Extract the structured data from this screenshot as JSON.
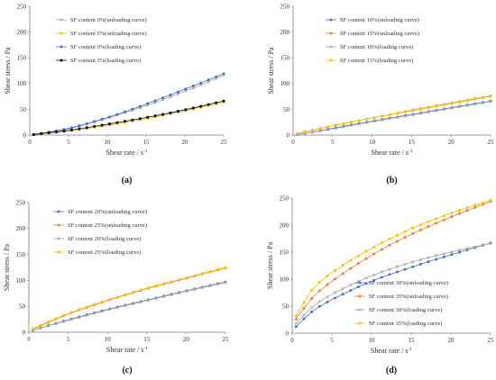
{
  "chart_data": [
    {
      "type": "line",
      "panel": "(a)",
      "xlabel": "Shear rate / s",
      "xlabel_sup": "-1",
      "ylabel": "Shear stress / Pa",
      "xlim": [
        0,
        25
      ],
      "ylim": [
        0,
        250
      ],
      "xticks": [
        0,
        5,
        10,
        15,
        20,
        25
      ],
      "yticks": [
        0,
        50,
        100,
        150,
        200,
        250
      ],
      "grid": false,
      "legend_position": "top-left",
      "series": [
        {
          "name": "SF content 0%(unloading curve)",
          "color": "#a5a5a5",
          "marker": "x",
          "x": [
            0.5,
            5,
            10,
            15,
            20,
            25
          ],
          "y": [
            1,
            12,
            33,
            57,
            85,
            116
          ]
        },
        {
          "name": "SF content 5%(unloading curve)",
          "color": "#ffc000",
          "marker": "circle",
          "x": [
            0.5,
            5,
            10,
            15,
            20,
            25
          ],
          "y": [
            1,
            8,
            19,
            32,
            47,
            64
          ]
        },
        {
          "name": "SF content 0%(loading curve)",
          "color": "#4472c4",
          "marker": "circle",
          "x": [
            0.5,
            5,
            10,
            15,
            20,
            25
          ],
          "y": [
            1,
            13,
            34,
            60,
            89,
            119
          ]
        },
        {
          "name": "SF content 5%(loading curve)",
          "color": "#111111",
          "marker": "square",
          "x": [
            0.5,
            5,
            10,
            15,
            20,
            25
          ],
          "y": [
            1,
            9,
            21,
            34,
            49,
            66
          ]
        }
      ]
    },
    {
      "type": "line",
      "panel": "(b)",
      "xlabel": "Shear rate / s",
      "xlabel_sup": "-1",
      "ylabel": "Shear stress / Pa",
      "xlim": [
        0,
        25
      ],
      "ylim": [
        0,
        250
      ],
      "xticks": [
        0,
        5,
        10,
        15,
        20,
        25
      ],
      "yticks": [
        0,
        50,
        100,
        150,
        200,
        250
      ],
      "grid": false,
      "legend_position": "top-left",
      "series": [
        {
          "name": "SF content 10%(unloading curve)",
          "color": "#4472c4",
          "marker": "circle",
          "x": [
            0.5,
            5,
            10,
            15,
            20,
            25
          ],
          "y": [
            1,
            13,
            27,
            40,
            53,
            66
          ]
        },
        {
          "name": "SF content 15%(unloading curve)",
          "color": "#ed7d31",
          "marker": "circle",
          "x": [
            0.5,
            5,
            10,
            15,
            20,
            25
          ],
          "y": [
            3,
            18,
            33,
            48,
            62,
            76
          ]
        },
        {
          "name": "SF content 10%(loading curve)",
          "color": "#a5a5a5",
          "marker": "x",
          "x": [
            0.5,
            5,
            10,
            15,
            20,
            25
          ],
          "y": [
            1,
            12,
            26,
            39,
            52,
            65
          ]
        },
        {
          "name": "SF content 15%(loading curve)",
          "color": "#ffc000",
          "marker": "circle",
          "x": [
            0.5,
            5,
            10,
            15,
            20,
            25
          ],
          "y": [
            3,
            18,
            33,
            47,
            61,
            75
          ]
        }
      ]
    },
    {
      "type": "line",
      "panel": "(c)",
      "xlabel": "Shear rate / s",
      "xlabel_sup": "-1",
      "ylabel": "Shear stress / Pa",
      "xlim": [
        0,
        25
      ],
      "ylim": [
        0,
        250
      ],
      "xticks": [
        0,
        5,
        10,
        15,
        20,
        25
      ],
      "yticks": [
        0,
        50,
        100,
        150,
        200,
        250
      ],
      "grid": false,
      "legend_position": "top-left",
      "series": [
        {
          "name": "SF content 20%(unloading curve)",
          "color": "#4472c4",
          "marker": "circle",
          "x": [
            0.5,
            5,
            10,
            15,
            20,
            25
          ],
          "y": [
            4,
            24,
            44,
            62,
            80,
            97
          ]
        },
        {
          "name": "SF content 25%(unloading curve)",
          "color": "#ed7d31",
          "marker": "circle",
          "x": [
            0.5,
            5,
            10,
            15,
            20,
            25
          ],
          "y": [
            6,
            35,
            61,
            84,
            104,
            124
          ]
        },
        {
          "name": "SF content 20%(loading curve)",
          "color": "#a5a5a5",
          "marker": "x",
          "x": [
            0.5,
            5,
            10,
            15,
            20,
            25
          ],
          "y": [
            4,
            23,
            43,
            61,
            79,
            96
          ]
        },
        {
          "name": "SF content 25%(loading curve)",
          "color": "#ffc000",
          "marker": "circle",
          "x": [
            0.5,
            5,
            10,
            15,
            20,
            25
          ],
          "y": [
            7,
            36,
            62,
            85,
            105,
            125
          ]
        }
      ]
    },
    {
      "type": "line",
      "panel": "(d)",
      "xlabel": "Shear rate / s",
      "xlabel_sup": "-1",
      "ylabel": "Shear stress / Pa",
      "xlim": [
        0,
        25
      ],
      "ylim": [
        0,
        250
      ],
      "xticks": [
        0,
        5,
        10,
        15,
        20,
        25
      ],
      "yticks": [
        0,
        50,
        100,
        150,
        200,
        250
      ],
      "grid": false,
      "legend_position": "bottom-right",
      "series": [
        {
          "name": "SF content 30%(unloading curve)",
          "color": "#4472c4",
          "marker": "circle",
          "x": [
            0.5,
            2.5,
            5,
            10,
            15,
            20,
            25
          ],
          "y": [
            12,
            40,
            62,
            96,
            122,
            145,
            167
          ]
        },
        {
          "name": "SF content 35%(unloading curve)",
          "color": "#ed7d31",
          "marker": "circle",
          "x": [
            0.5,
            2.5,
            5,
            10,
            15,
            20,
            25
          ],
          "y": [
            26,
            65,
            96,
            144,
            183,
            215,
            244
          ]
        },
        {
          "name": "SF content 30%(loading curve)",
          "color": "#a5a5a5",
          "marker": "x",
          "x": [
            0.5,
            2.5,
            5,
            10,
            15,
            20,
            25
          ],
          "y": [
            18,
            48,
            72,
            106,
            131,
            150,
            166
          ]
        },
        {
          "name": "SF content 35%(loading curve)",
          "color": "#ffc000",
          "marker": "circle",
          "x": [
            0.5,
            2.5,
            5,
            10,
            15,
            20,
            25
          ],
          "y": [
            32,
            80,
            112,
            157,
            193,
            222,
            246
          ]
        }
      ]
    }
  ]
}
